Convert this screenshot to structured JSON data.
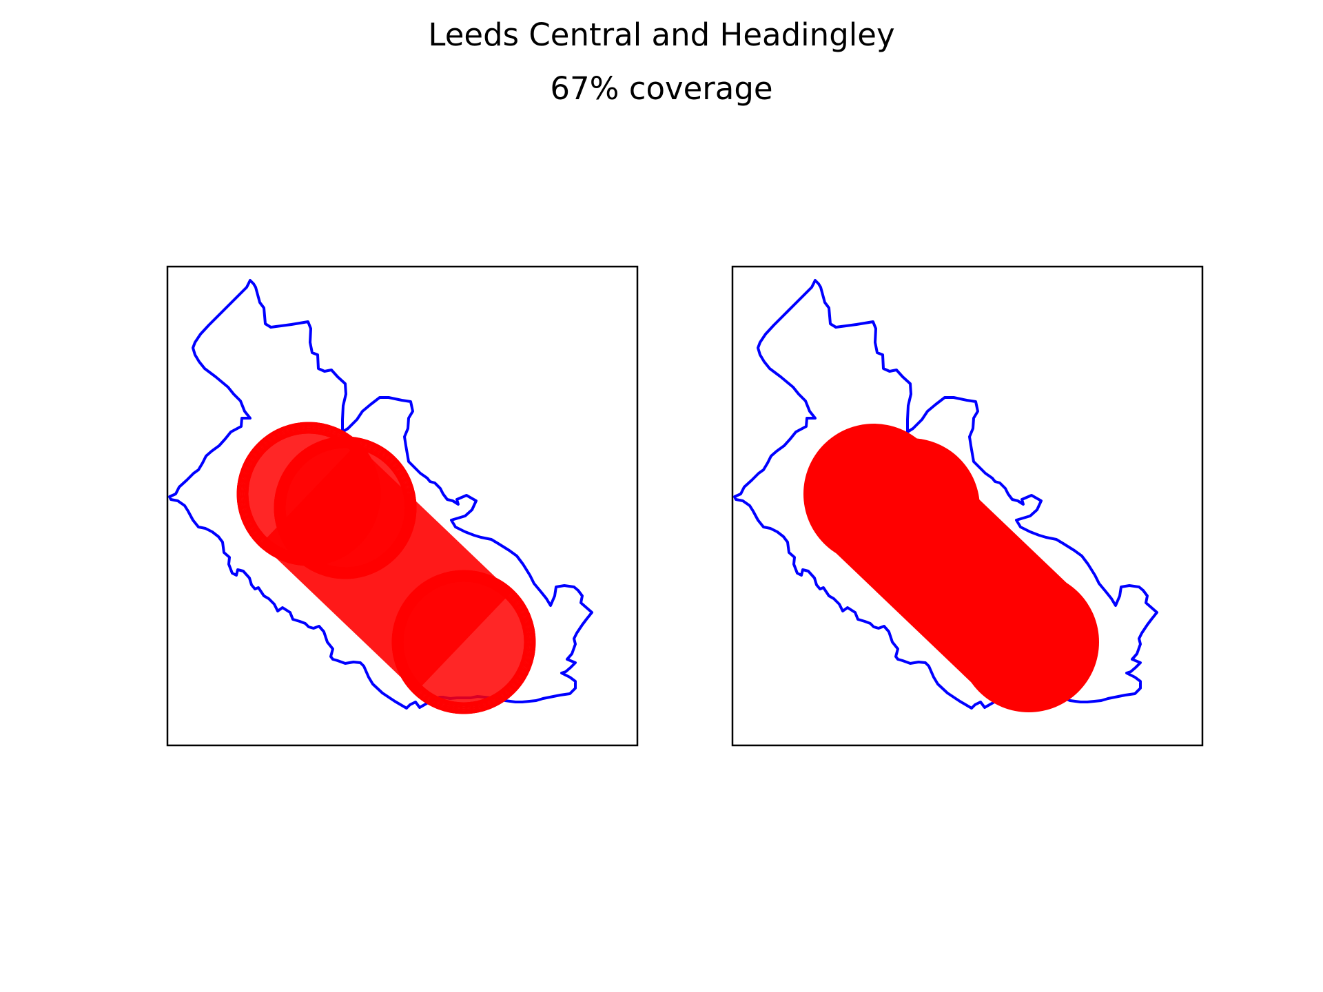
{
  "figure": {
    "title": "Leeds Central and Headingley",
    "subtitle": "67% coverage"
  },
  "style": {
    "boundary_color": "#0000ff",
    "coverage_color": "#ff0000",
    "frame_color": "#000000"
  },
  "panels": [
    {
      "id": "left",
      "rendering": "outlined-circles"
    },
    {
      "id": "right",
      "rendering": "filled-circles"
    }
  ]
}
